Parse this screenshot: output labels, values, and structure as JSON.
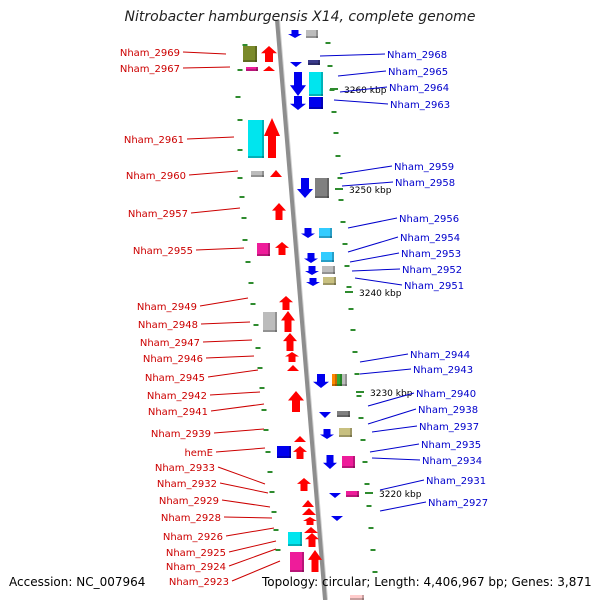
{
  "title": "Nitrobacter hamburgensis X14, complete genome",
  "accession": "Accession: NC_007964",
  "summary": "Topology: circular; Length: 4,406,967 bp; Genes: 3,871",
  "colors": {
    "backbone": "#8e8e8e",
    "left_labels": "#cc0000",
    "right_labels": "#0000cc",
    "tick": "#2e8b2e",
    "reverse_strand": "#ff0000",
    "forward_strand": "#0000ee",
    "cyan": "#00e5ee",
    "olive": "#7a8a2a",
    "magenta": "#ee1c9a",
    "gray": "#bcbcbc",
    "dark_gray": "#808080",
    "khaki": "#c8c080"
  },
  "scale_labels": [
    "3260 kbp",
    "3250 kbp",
    "3240 kbp",
    "3230 kbp",
    "3220 kbp"
  ],
  "left_genes": [
    "Nham_2969",
    "Nham_2967",
    "Nham_2961",
    "Nham_2960",
    "Nham_2957",
    "Nham_2955",
    "Nham_2949",
    "Nham_2948",
    "Nham_2947",
    "Nham_2946",
    "Nham_2945",
    "Nham_2942",
    "Nham_2941",
    "Nham_2939",
    "hemE",
    "Nham_2933",
    "Nham_2932",
    "Nham_2929",
    "Nham_2928",
    "Nham_2926",
    "Nham_2925",
    "Nham_2924",
    "Nham_2923"
  ],
  "right_genes": [
    "Nham_2968",
    "Nham_2965",
    "Nham_2964",
    "Nham_2963",
    "Nham_2959",
    "Nham_2958",
    "Nham_2956",
    "Nham_2954",
    "Nham_2953",
    "Nham_2952",
    "Nham_2951",
    "Nham_2944",
    "Nham_2943",
    "Nham_2940",
    "Nham_2938",
    "Nham_2937",
    "Nham_2935",
    "Nham_2934",
    "Nham_2931",
    "Nham_2927"
  ]
}
